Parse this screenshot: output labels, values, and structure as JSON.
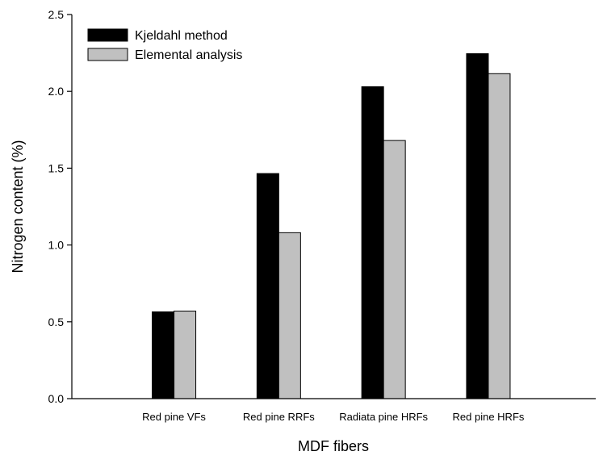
{
  "chart_data": {
    "type": "bar",
    "title": "",
    "xlabel": "MDF fibers",
    "ylabel": "Nitrogen content (%)",
    "ylim": [
      0,
      2.5
    ],
    "yticks": [
      "0.0",
      "0.5",
      "1.0",
      "1.5",
      "2.0",
      "2.5"
    ],
    "categories": [
      "Red pine VFs",
      "Red pine RRFs",
      "Radiata pine HRFs",
      "Red pine HRFs"
    ],
    "series": [
      {
        "name": "Kjeldahl method",
        "color": "#000000",
        "values": [
          0.565,
          1.465,
          2.03,
          2.245
        ]
      },
      {
        "name": "Elemental analysis",
        "color": "#c0c0c0",
        "values": [
          0.57,
          1.08,
          1.68,
          2.115
        ]
      }
    ],
    "legend_position": "top-left",
    "grid": false
  }
}
